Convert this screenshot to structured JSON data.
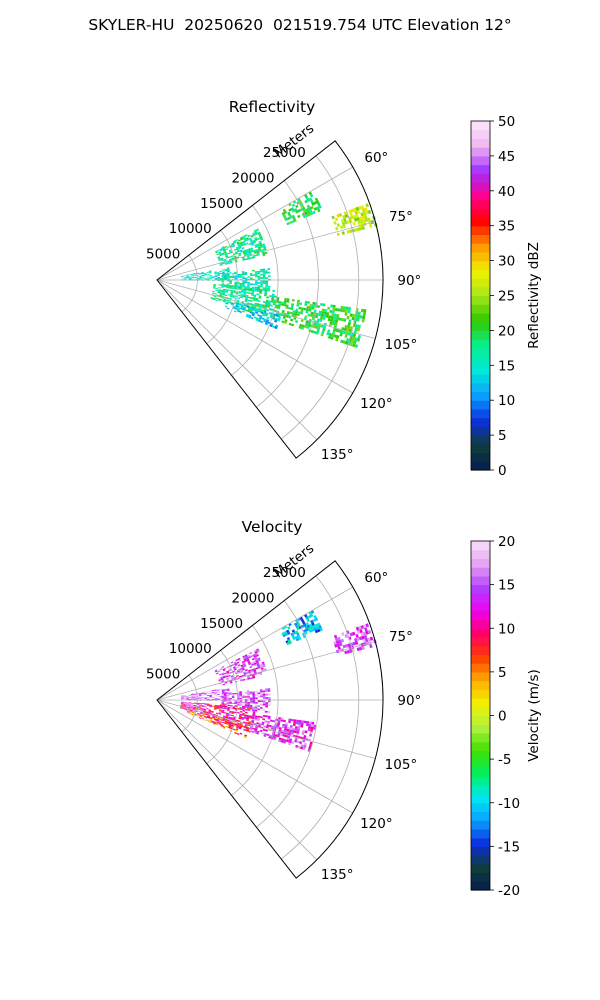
{
  "figure": {
    "title": "SKYLER-HU  20250620  021519.754 UTC Elevation 12°"
  },
  "chart_data": [
    {
      "type": "heatmap",
      "title": "Reflectivity",
      "projection": "polar-sector",
      "radial_label": "Meters",
      "radial_ticks": [
        5000,
        10000,
        15000,
        20000,
        25000
      ],
      "angle_ticks_deg": [
        60,
        75,
        90,
        105,
        120,
        135
      ],
      "angle_tick_labels": [
        "60°",
        "75°",
        "90°",
        "105°",
        "120°",
        "135°"
      ],
      "azimuth_range_deg": [
        52,
        142
      ],
      "range_max_m": 28000,
      "grid": true,
      "colorbar": {
        "label": "Reflectivity dBZ",
        "min": 0,
        "max": 50,
        "ticks": [
          0,
          5,
          10,
          15,
          20,
          25,
          30,
          35,
          40,
          45,
          50
        ],
        "palette_stops": [
          "#061c4e",
          "#0f3d3a",
          "#0b2fe0",
          "#0aa0ff",
          "#00e8d8",
          "#08f090",
          "#30c800",
          "#a6e61a",
          "#f2f200",
          "#ff9600",
          "#ff0000",
          "#ff0090",
          "#a030ff",
          "#f0b6f0",
          "#fce6fc"
        ]
      },
      "echo_regions": [
        {
          "az": [
            60,
            67
          ],
          "r_m": [
            17500,
            22000
          ],
          "dbz": 20
        },
        {
          "az": [
            63,
            77
          ],
          "r_m": [
            8000,
            14000
          ],
          "dbz": 17
        },
        {
          "az": [
            70,
            76
          ],
          "r_m": [
            23000,
            28000
          ],
          "dbz": 26
        },
        {
          "az": [
            80,
            90
          ],
          "r_m": [
            3000,
            9000
          ],
          "dbz": 15
        },
        {
          "az": [
            84,
            96
          ],
          "r_m": [
            8000,
            14000
          ],
          "dbz": 16
        },
        {
          "az": [
            94,
            109
          ],
          "r_m": [
            7000,
            15000
          ],
          "dbz": 17
        },
        {
          "az": [
            98,
            108
          ],
          "r_m": [
            15000,
            26000
          ],
          "dbz": 20
        },
        {
          "az": [
            106,
            112
          ],
          "r_m": [
            9000,
            16000
          ],
          "dbz": 13
        }
      ]
    },
    {
      "type": "heatmap",
      "title": "Velocity",
      "projection": "polar-sector",
      "radial_label": "Meters",
      "radial_ticks": [
        5000,
        10000,
        15000,
        20000,
        25000
      ],
      "angle_ticks_deg": [
        60,
        75,
        90,
        105,
        120,
        135
      ],
      "angle_tick_labels": [
        "60°",
        "75°",
        "90°",
        "105°",
        "120°",
        "135°"
      ],
      "azimuth_range_deg": [
        52,
        142
      ],
      "range_max_m": 28000,
      "grid": true,
      "colorbar": {
        "label": "Velocity (m/s)",
        "min": -20,
        "max": 20,
        "ticks": [
          -20,
          -15,
          -10,
          -5,
          0,
          5,
          10,
          15,
          20
        ],
        "palette_stops": [
          "#061c4e",
          "#0f3d3a",
          "#0b2fe0",
          "#0aa0ff",
          "#00e8f0",
          "#00f060",
          "#40e000",
          "#b0f040",
          "#f2f200",
          "#ffb000",
          "#ff4000",
          "#ff0060",
          "#f000f0",
          "#b040ff",
          "#e6a0f0",
          "#f8e0f8"
        ]
      },
      "echo_regions": [
        {
          "az": [
            60,
            67
          ],
          "r_m": [
            17500,
            22000
          ],
          "vel": -11
        },
        {
          "az": [
            63,
            77
          ],
          "r_m": [
            8000,
            14000
          ],
          "vel": 14
        },
        {
          "az": [
            70,
            76
          ],
          "r_m": [
            23000,
            28000
          ],
          "vel": 15
        },
        {
          "az": [
            80,
            90
          ],
          "r_m": [
            3000,
            9000
          ],
          "vel": 16
        },
        {
          "az": [
            84,
            96
          ],
          "r_m": [
            8000,
            14000
          ],
          "vel": 15
        },
        {
          "az": [
            94,
            109
          ],
          "r_m": [
            3000,
            12000
          ],
          "vel": 10
        },
        {
          "az": [
            98,
            108
          ],
          "r_m": [
            12000,
            20000
          ],
          "vel": 14
        },
        {
          "az": [
            106,
            113
          ],
          "r_m": [
            4000,
            12000
          ],
          "vel": 7
        }
      ]
    }
  ]
}
